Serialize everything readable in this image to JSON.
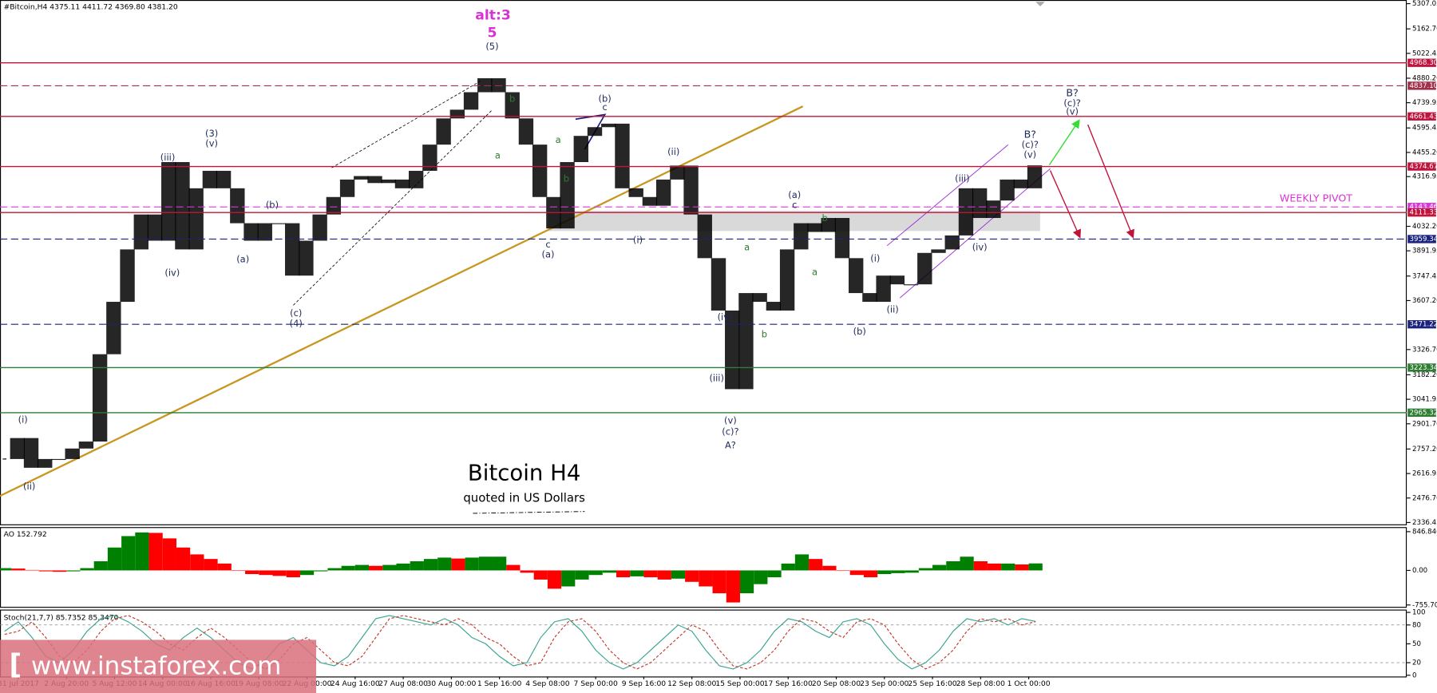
{
  "watermark": "www.instaforex.com",
  "chart_data": [
    {
      "type": "candlestick",
      "header": "#Bitcoin,H4  4375.11 4411.72 4369.80 4381.20",
      "title": "Bitcoin H4",
      "subtitle": "quoted in US Dollars",
      "color": "#000000",
      "values": [
        2700,
        2820,
        2650,
        2700,
        2700,
        2760,
        2800,
        3300,
        3600,
        3900,
        4100,
        3950,
        4400,
        3900,
        4250,
        4350,
        4250,
        4050,
        3950,
        4050,
        4050,
        3750,
        3950,
        4100,
        4200,
        4300,
        4320,
        4280,
        4300,
        4250,
        4350,
        4500,
        4650,
        4700,
        4800,
        4880,
        4800,
        4650,
        4500,
        4200,
        4020,
        4400,
        4550,
        4600,
        4620,
        4250,
        4200,
        4150,
        4300,
        4380,
        4100,
        3850,
        3550,
        3100,
        3650,
        3600,
        3550,
        3900,
        4050,
        4000,
        4080,
        3850,
        3650,
        3600,
        3750,
        3700,
        3700,
        3880,
        3900,
        3980,
        4250,
        4080,
        4180,
        4300,
        4250,
        4381.2
      ],
      "ylim": [
        2326,
        5328
      ],
      "yticks": [
        5307.05,
        {
          "value": 5162.7,
          "label": "5162.70"
        },
        5022.45,
        {
          "value": 4880.2,
          "label": "4880.20"
        },
        4739.95,
        4595.45,
        {
          "value": 4455.2,
          "label": "4455.20"
        },
        4316.95,
        {
          "value": 4032.2,
          "label": "4032.20"
        },
        3891.95,
        3747.45,
        {
          "value": 3607.2,
          "label": "3607.20"
        },
        {
          "value": 3326.7,
          "label": "3326.70"
        },
        {
          "value": 3182.2,
          "label": "3182.20"
        },
        3041.95,
        {
          "value": 2901.7,
          "label": "2901.70"
        },
        {
          "value": 2757.2,
          "label": "2757.20"
        },
        2616.95,
        {
          "value": 2476.7,
          "label": "2476.70"
        },
        2336.45
      ],
      "x_labels": [
        "31 Jul 2017",
        "2 Aug 20:00",
        "5 Aug 12:00",
        "14 Aug 00:00",
        "16 Aug 16:00",
        "19 Aug 08:00",
        "22 Aug 00:00",
        "24 Aug 16:00",
        "27 Aug 08:00",
        "30 Aug 00:00",
        "1 Sep 16:00",
        "4 Sep 08:00",
        "7 Sep 00:00",
        "9 Sep 16:00",
        "12 Sep 08:00",
        "15 Sep 00:00",
        "17 Sep 16:00",
        "20 Sep 08:00",
        "23 Sep 00:00",
        "25 Sep 16:00",
        "28 Sep 08:00",
        "1 Oct 00:00"
      ],
      "levels": [
        {
          "value": 4968.3,
          "label": "4968.30",
          "color": "#c0143c",
          "style": "solid"
        },
        {
          "value": 4837.1,
          "label": "4837.10",
          "color": "#a0304a",
          "style": "dashed"
        },
        {
          "value": 4661.43,
          "label": "4661.43",
          "color": "#c0143c",
          "style": "solid"
        },
        {
          "value": 4374.67,
          "label": "4374.67",
          "color": "#c0143c",
          "style": "solid"
        },
        {
          "value": 4143.46,
          "label": "4143.46",
          "color": "#d63ad6",
          "style": "dashed"
        },
        {
          "value": 4111.33,
          "label": "4111.33",
          "color": "#c0143c",
          "style": "solid"
        },
        {
          "value": 3959.34,
          "label": "3959.34",
          "color": "#1a237e",
          "style": "dashed"
        },
        {
          "value": 3471.22,
          "label": "3471.22",
          "color": "#1a237e",
          "style": "dashed"
        },
        {
          "value": 3223.34,
          "label": "3223.34",
          "color": "#2e7d32",
          "style": "solid"
        },
        {
          "value": 2965.32,
          "label": "2965.32",
          "color": "#2e7d32",
          "style": "solid"
        }
      ],
      "annotations": [
        "alt:3",
        "5",
        "(5)",
        "(i)",
        "(ii)",
        "(iii)",
        "(iv)",
        "(3)",
        "(v)",
        "(a)",
        "(b)",
        "(c)",
        "(4)",
        "b",
        "a",
        "a",
        "b",
        "(b)",
        "c",
        "c",
        "(a)",
        "(i)",
        "(ii)",
        "a",
        "(iv)",
        "b",
        "(iii)",
        "(v)",
        "(c)?",
        "A?",
        "(a)",
        "c",
        "b",
        "a",
        "(i)",
        "(ii)",
        "(b)",
        "(iii)",
        "(iv)",
        "B?",
        "(c)?",
        "(v)",
        "B?",
        "(c)?",
        "(v)",
        "WEEKLY PIVOT"
      ]
    },
    {
      "type": "bar",
      "header": "AO 152.792",
      "up_color": "#008000",
      "down_color": "#ff0000",
      "values": [
        50,
        40,
        10,
        -20,
        -30,
        -20,
        50,
        200,
        500,
        750,
        830,
        820,
        700,
        500,
        350,
        250,
        150,
        0,
        -80,
        -100,
        -120,
        -150,
        -100,
        -20,
        50,
        100,
        120,
        100,
        120,
        150,
        200,
        250,
        280,
        260,
        280,
        300,
        300,
        120,
        -50,
        -200,
        -400,
        -350,
        -200,
        -100,
        -50,
        -150,
        -130,
        -150,
        -200,
        -180,
        -250,
        -350,
        -500,
        -700,
        -500,
        -300,
        -150,
        150,
        350,
        250,
        100,
        0,
        -100,
        -150,
        -80,
        -60,
        -50,
        50,
        120,
        200,
        300,
        200,
        150,
        150,
        130,
        152.792
      ],
      "ylim": [
        -796,
        947
      ],
      "yticks": [
        846.846,
        {
          "value": 0,
          "label": "0.00"
        },
        -755.709
      ]
    },
    {
      "type": "line",
      "header": "Stoch(21,7,7) 85.7352 85.3470",
      "series": [
        {
          "color": "#3aa38f",
          "style": "solid",
          "values": [
            70,
            85,
            60,
            30,
            20,
            40,
            70,
            90,
            95,
            85,
            70,
            50,
            40,
            60,
            75,
            60,
            40,
            20,
            10,
            25,
            50,
            60,
            40,
            20,
            15,
            30,
            60,
            90,
            95,
            90,
            85,
            80,
            90,
            80,
            60,
            50,
            30,
            15,
            20,
            60,
            85,
            90,
            70,
            40,
            20,
            10,
            20,
            40,
            60,
            80,
            70,
            40,
            15,
            10,
            20,
            40,
            70,
            90,
            85,
            70,
            60,
            85,
            90,
            80,
            50,
            25,
            10,
            20,
            40,
            70,
            90,
            85,
            90,
            80,
            90,
            85.7352
          ]
        },
        {
          "color": "#c0392b",
          "style": "dashed",
          "values": [
            65,
            70,
            85,
            60,
            30,
            20,
            40,
            70,
            90,
            95,
            85,
            70,
            50,
            40,
            60,
            75,
            60,
            40,
            20,
            10,
            25,
            50,
            60,
            40,
            20,
            15,
            30,
            60,
            90,
            95,
            90,
            85,
            80,
            90,
            80,
            60,
            50,
            30,
            15,
            20,
            60,
            85,
            90,
            70,
            40,
            20,
            10,
            20,
            40,
            60,
            80,
            70,
            40,
            15,
            10,
            20,
            40,
            70,
            90,
            85,
            70,
            60,
            85,
            90,
            80,
            50,
            25,
            10,
            20,
            40,
            70,
            90,
            85,
            90,
            80,
            85.347
          ]
        }
      ],
      "ylim": [
        -2,
        103
      ],
      "yticks": [
        100,
        80,
        50,
        20,
        0
      ],
      "levels": [
        80,
        20
      ]
    }
  ]
}
